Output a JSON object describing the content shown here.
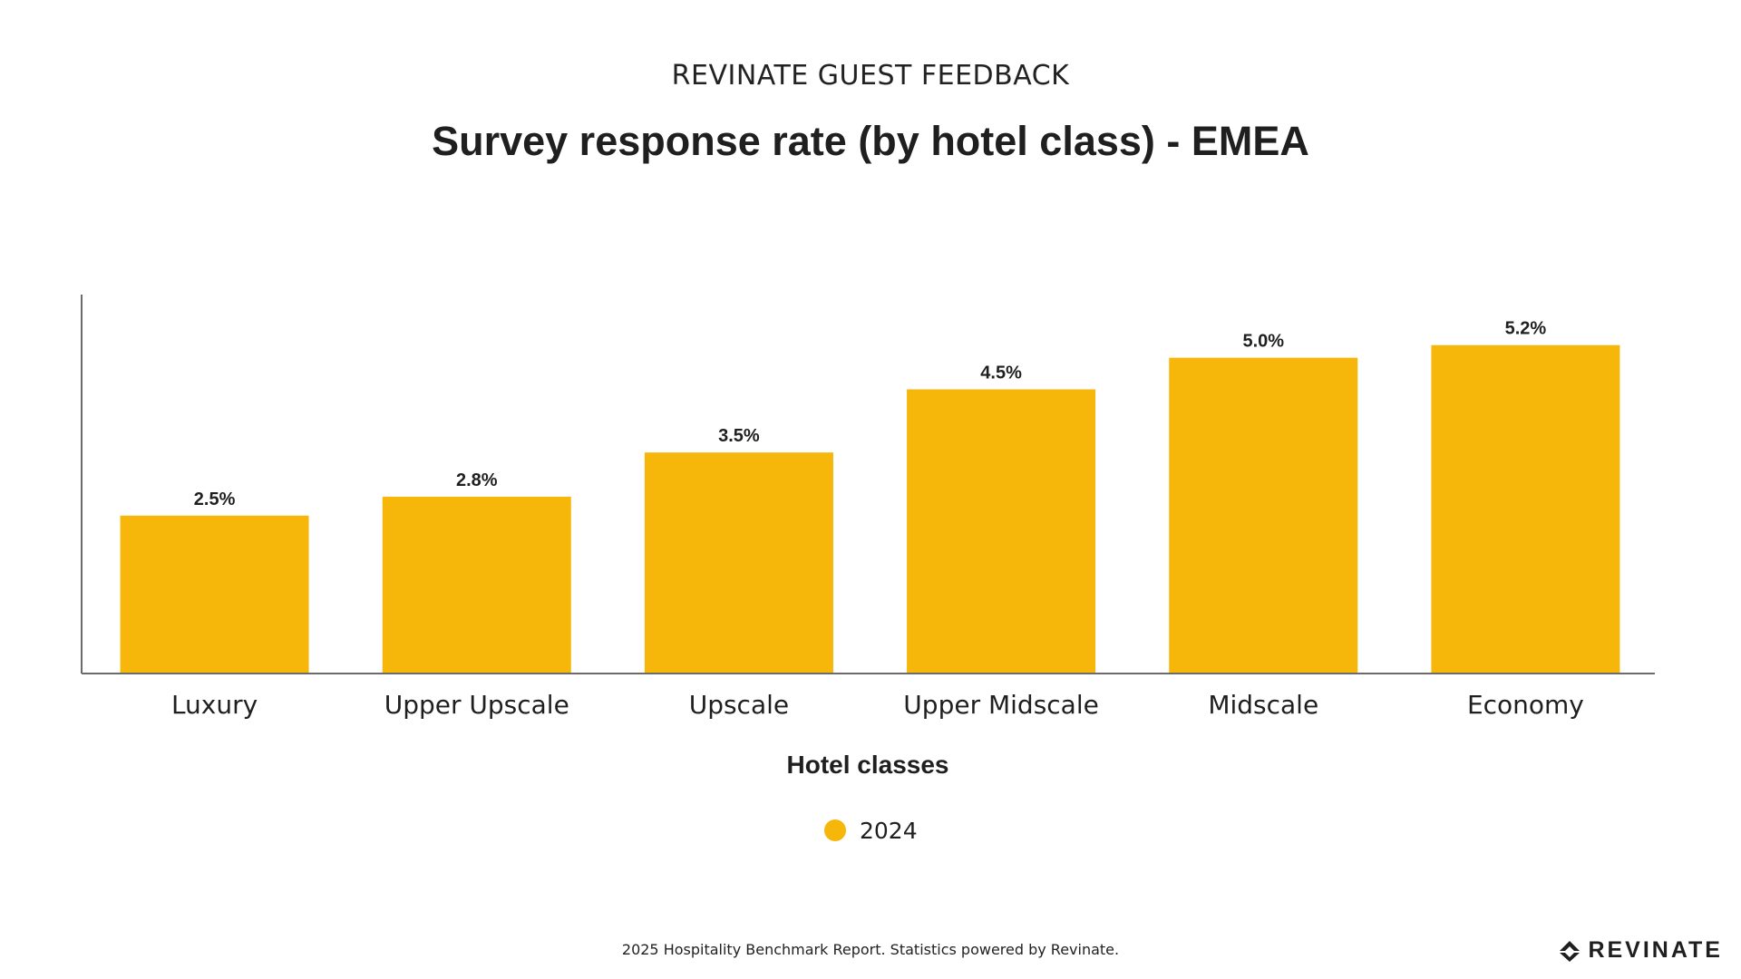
{
  "header": {
    "supertitle": "REVINATE GUEST FEEDBACK",
    "title": "Survey response rate (by hotel class) - EMEA"
  },
  "chart_data": {
    "type": "bar",
    "categories": [
      "Luxury",
      "Upper Upscale",
      "Upscale",
      "Upper Midscale",
      "Midscale",
      "Economy"
    ],
    "series": [
      {
        "name": "2024",
        "values": [
          2.5,
          2.8,
          3.5,
          4.5,
          5.0,
          5.2
        ],
        "value_labels": [
          "2.5%",
          "2.8%",
          "3.5%",
          "4.5%",
          "5.0%",
          "5.2%"
        ],
        "color": "#F6B70A"
      }
    ],
    "xlabel": "Hotel classes",
    "ylabel": "",
    "ylim": [
      0,
      6
    ],
    "grid": false,
    "legend_position": "bottom-center"
  },
  "footer": {
    "note": "2025 Hospitality Benchmark Report. Statistics powered by Revinate.",
    "brand": "REVINATE"
  },
  "colors": {
    "bar": "#F6B70A",
    "axis": "#6b6b6b",
    "text": "#1f1f1f"
  }
}
